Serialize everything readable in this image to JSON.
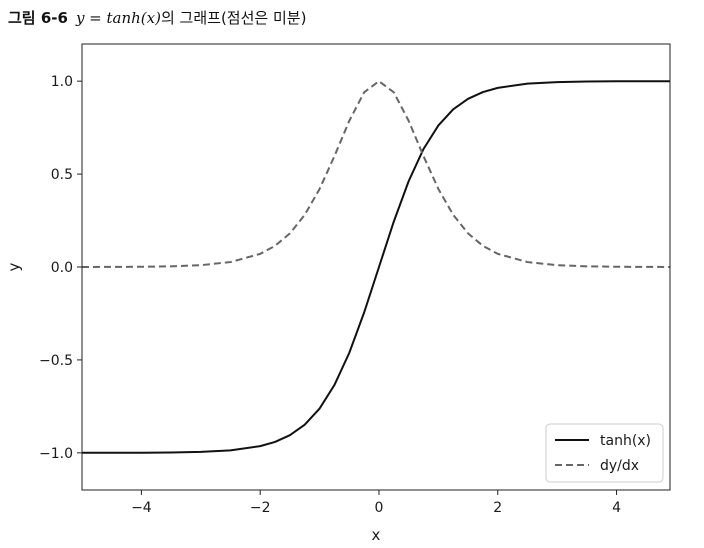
{
  "figure": {
    "label": "그림 6-6",
    "math": "y = tanh(x)",
    "rest": "의 그래프(점선은 미분)"
  },
  "chart_data": {
    "type": "line",
    "xlabel": "x",
    "ylabel": "y",
    "xlim": [
      -5.0,
      4.9
    ],
    "ylim": [
      -1.2,
      1.2
    ],
    "xticks": [
      -4,
      -2,
      0,
      2,
      4
    ],
    "xtick_labels": [
      "−4",
      "−2",
      "0",
      "2",
      "4"
    ],
    "yticks": [
      -1.0,
      -0.5,
      0.0,
      0.5,
      1.0
    ],
    "ytick_labels": [
      "−1.0",
      "−0.5",
      "0.0",
      "0.5",
      "1.0"
    ],
    "grid": false,
    "legend_position": "lower-right",
    "x": [
      -5.0,
      -4.5,
      -4.0,
      -3.5,
      -3.0,
      -2.5,
      -2.0,
      -1.75,
      -1.5,
      -1.25,
      -1.0,
      -0.75,
      -0.5,
      -0.25,
      0.0,
      0.25,
      0.5,
      0.75,
      1.0,
      1.25,
      1.5,
      1.75,
      2.0,
      2.5,
      3.0,
      3.5,
      4.0,
      4.5,
      4.9
    ],
    "series": [
      {
        "name": "tanh(x)",
        "color": "#111111",
        "dash": "solid",
        "values": [
          -0.9999,
          -0.9998,
          -0.9993,
          -0.9982,
          -0.9951,
          -0.9866,
          -0.964,
          -0.9414,
          -0.9051,
          -0.8483,
          -0.7616,
          -0.6351,
          -0.4621,
          -0.2449,
          0.0,
          0.2449,
          0.4621,
          0.6351,
          0.7616,
          0.8483,
          0.9051,
          0.9414,
          0.964,
          0.9866,
          0.9951,
          0.9982,
          0.9993,
          0.9998,
          0.9999
        ]
      },
      {
        "name": "dy/dx",
        "color": "#666666",
        "dash": "dashed",
        "values": [
          0.0002,
          0.0005,
          0.0013,
          0.0036,
          0.0099,
          0.0266,
          0.0707,
          0.1138,
          0.1807,
          0.2805,
          0.42,
          0.5966,
          0.7864,
          0.94,
          1.0,
          0.94,
          0.7864,
          0.5966,
          0.42,
          0.2805,
          0.1807,
          0.1138,
          0.0707,
          0.0266,
          0.0099,
          0.0036,
          0.0013,
          0.0005,
          0.0002
        ]
      }
    ]
  }
}
